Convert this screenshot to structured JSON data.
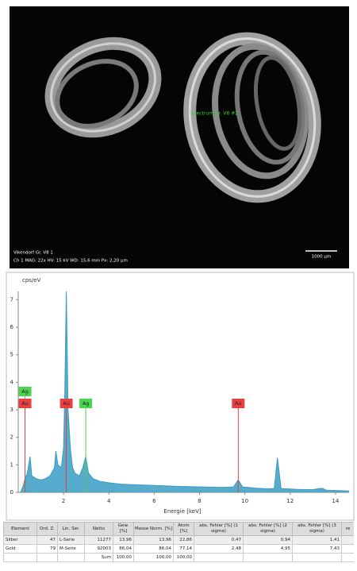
{
  "image": {
    "label": "Spectrum Gr. V8 #2",
    "caption": "Vikendorf Gr. V8 1",
    "settings": "Ch 1   MAG: 22x   HV: 15 kV   WD: 15,6 mm   Px: 2,20 µm",
    "scale": "1000 µm"
  },
  "chart_data": {
    "type": "area",
    "y_label": "cps/eV",
    "x_label": "Energie [keV]",
    "x": [
      0.1,
      0.2,
      0.3,
      0.4,
      0.52,
      0.6,
      0.8,
      1.0,
      1.2,
      1.4,
      1.6,
      1.66,
      1.75,
      1.9,
      2.0,
      2.05,
      2.12,
      2.2,
      2.3,
      2.4,
      2.5,
      2.7,
      2.85,
      2.98,
      3.1,
      3.3,
      3.6,
      4.0,
      4.5,
      5,
      6,
      7,
      8,
      9,
      9.5,
      9.71,
      9.9,
      10.5,
      11,
      11.3,
      11.44,
      11.6,
      12,
      12.5,
      13,
      13.4,
      13.6,
      14,
      14.6
    ],
    "series": [
      {
        "color": "#3a9cc4",
        "values": [
          0,
          0.2,
          0.5,
          0.7,
          1.3,
          0.6,
          0.5,
          0.45,
          0.5,
          0.6,
          0.9,
          1.5,
          1.0,
          0.9,
          1.6,
          3.5,
          7.3,
          3.0,
          1.6,
          0.9,
          0.7,
          0.6,
          0.9,
          1.3,
          0.7,
          0.5,
          0.4,
          0.35,
          0.3,
          0.28,
          0.25,
          0.22,
          0.2,
          0.18,
          0.2,
          0.45,
          0.2,
          0.15,
          0.13,
          0.14,
          1.25,
          0.14,
          0.12,
          0.1,
          0.1,
          0.15,
          0.08,
          0.07,
          0.05
        ]
      }
    ],
    "xlim": [
      0,
      14.6
    ],
    "ylim": [
      0,
      7.3
    ],
    "xticks": [
      2,
      4,
      6,
      8,
      10,
      12,
      14
    ],
    "yticks": [
      0,
      1,
      2,
      3,
      4,
      5,
      6,
      7
    ],
    "markers": [
      {
        "label": "Ag",
        "x": 0.3,
        "color": "#4cd44c"
      },
      {
        "label": "Au",
        "x": 0.3,
        "color": "#e84040"
      },
      {
        "label": "Au",
        "x": 2.12,
        "color": "#e84040"
      },
      {
        "label": "Ag",
        "x": 2.98,
        "color": "#4cd44c"
      },
      {
        "label": "Au",
        "x": 9.71,
        "color": "#e84040"
      }
    ]
  },
  "table": {
    "header": [
      "Element",
      "Ord. Z.",
      "Lin. Ser.",
      "Netto",
      "Gew. [%]",
      "Masse Norm. [%]",
      "Atom [%]",
      "abs. Fehler [%] (1 sigma)",
      "abs. Fehler [%] (2 sigma)",
      "abs. Fehler [%] (3 sigma)",
      "re"
    ],
    "rows": [
      [
        "Silber",
        "47",
        "L-Serie",
        "11277",
        "13,96",
        "13,96",
        "22,86",
        "0,47",
        "0,94",
        "1,41"
      ],
      [
        "Gold",
        "79",
        "M-Serie",
        "92003",
        "86,04",
        "86,04",
        "77,14",
        "2,48",
        "4,95",
        "7,43"
      ]
    ],
    "sum": {
      "label": "Sum",
      "values": [
        "100,00",
        "100,00",
        "100,00"
      ]
    }
  }
}
